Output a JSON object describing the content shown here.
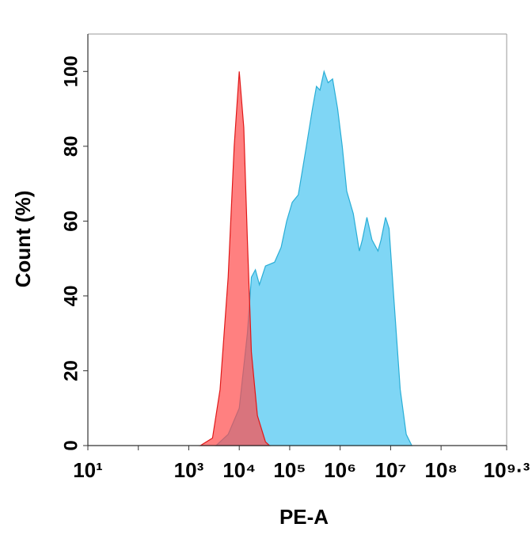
{
  "chart_data": {
    "type": "area",
    "xlabel": "PE-A",
    "ylabel": "Count  (%)",
    "xscale": "log",
    "xlim": [
      10,
      1995262315
    ],
    "xticks": [
      {
        "value": 10,
        "label": "10¹"
      },
      {
        "value": 1000,
        "label": "10³"
      },
      {
        "value": 10000,
        "label": "10⁴"
      },
      {
        "value": 100000,
        "label": "10⁵"
      },
      {
        "value": 1000000,
        "label": "10⁶"
      },
      {
        "value": 10000000,
        "label": "10⁷"
      },
      {
        "value": 100000000,
        "label": "10⁸"
      },
      {
        "value": 1995262315,
        "label": "10⁹·³"
      }
    ],
    "xminorticks": [
      100
    ],
    "ylim": [
      0,
      110
    ],
    "yticks": [
      0,
      20,
      40,
      60,
      80,
      100
    ],
    "series": [
      {
        "color": "#7fd6f5",
        "line_color": "#2aaed6",
        "x": [
          3470,
          6030,
          10000,
          14500,
          17400,
          20900,
          25100,
          33100,
          50100,
          67600,
          87100,
          112000,
          148000,
          214000,
          282000,
          339000,
          398000,
          479000,
          575000,
          708000,
          891000,
          1100000,
          1350000,
          1820000,
          2400000,
          2750000,
          3390000,
          4270000,
          5620000,
          6460000,
          7940000,
          9330000,
          11500000,
          15500000,
          20400000,
          26300000
        ],
        "values": [
          0,
          3,
          10,
          30,
          45,
          47,
          43,
          48,
          49,
          53,
          60,
          65,
          67,
          80,
          90,
          96,
          95,
          100,
          97,
          98,
          90,
          80,
          68,
          62,
          52,
          55,
          61,
          55,
          52,
          55,
          61,
          58,
          40,
          15,
          3,
          0
        ]
      },
      {
        "color": "#ff4a4a",
        "line_color": "#e01818",
        "x": [
          1700,
          2950,
          4170,
          6030,
          7940,
          10000,
          12300,
          14500,
          17400,
          22900,
          33100,
          39800
        ],
        "values": [
          0,
          2,
          15,
          45,
          80,
          100,
          85,
          55,
          25,
          8,
          1,
          0
        ]
      }
    ]
  }
}
